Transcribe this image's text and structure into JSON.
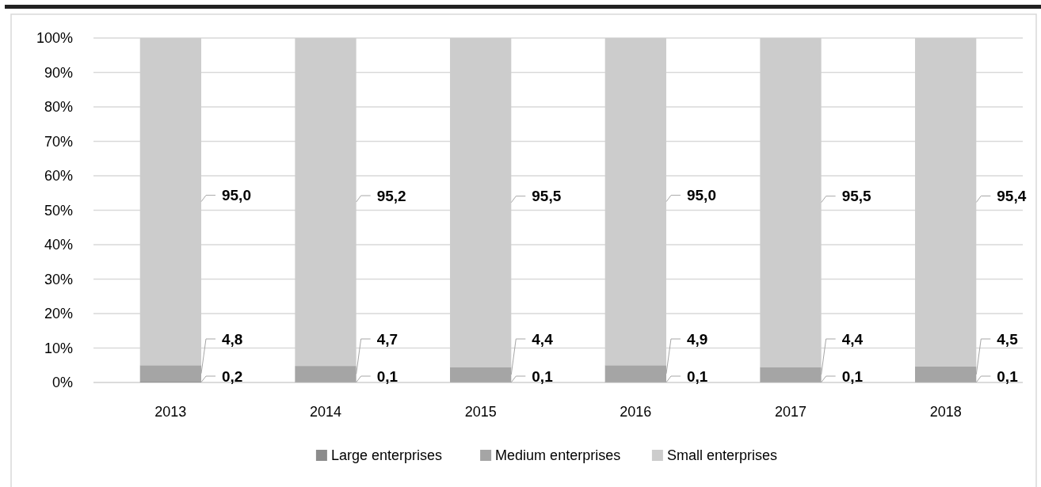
{
  "chart_data": {
    "type": "bar",
    "stacked": true,
    "categories": [
      "2013",
      "2014",
      "2015",
      "2016",
      "2017",
      "2018"
    ],
    "series": [
      {
        "name": "Large enterprises",
        "color": "#8c8c8c",
        "values": [
          0.2,
          0.1,
          0.1,
          0.1,
          0.1,
          0.1
        ],
        "value_labels": [
          "0,2",
          "0,1",
          "0,1",
          "0,1",
          "0,1",
          "0,1"
        ]
      },
      {
        "name": "Medium enterprises",
        "color": "#a5a5a5",
        "values": [
          4.8,
          4.7,
          4.4,
          4.9,
          4.4,
          4.5
        ],
        "value_labels": [
          "4,8",
          "4,7",
          "4,4",
          "4,9",
          "4,4",
          "4,5"
        ]
      },
      {
        "name": "Small enterprises",
        "color": "#cccccc",
        "values": [
          95.0,
          95.2,
          95.5,
          95.0,
          95.5,
          95.4
        ],
        "value_labels": [
          "95,0",
          "95,2",
          "95,5",
          "95,0",
          "95,5",
          "95,4"
        ]
      }
    ],
    "ylim": [
      0,
      100
    ],
    "yticks": [
      {
        "value": 0,
        "label": "0%"
      },
      {
        "value": 10,
        "label": "10%"
      },
      {
        "value": 20,
        "label": "20%"
      },
      {
        "value": 30,
        "label": "30%"
      },
      {
        "value": 40,
        "label": "40%"
      },
      {
        "value": 50,
        "label": "50%"
      },
      {
        "value": 60,
        "label": "60%"
      },
      {
        "value": 70,
        "label": "70%"
      },
      {
        "value": 80,
        "label": "80%"
      },
      {
        "value": 90,
        "label": "90%"
      },
      {
        "value": 100,
        "label": "100%"
      }
    ],
    "grid": "y",
    "legend": "bottom"
  }
}
